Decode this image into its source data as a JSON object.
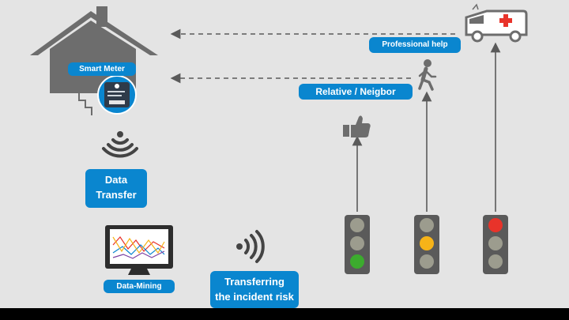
{
  "labels": {
    "smart_meter": "Smart Meter",
    "data_transfer_line1": "Data",
    "data_transfer_line2": "Transfer",
    "data_mining": "Data-Mining",
    "transfer_risk_line1": "Transferring",
    "transfer_risk_line2": "the incident risk",
    "professional_help": "Professional help",
    "relative_neighbor": "Relative / Neigbor"
  },
  "icons": [
    "house-icon",
    "smart-meter-device-icon",
    "wifi-signal-icon",
    "monitor-chart-icon",
    "thumbs-up-icon",
    "walking-person-icon",
    "ambulance-icon",
    "traffic-light-icon"
  ],
  "traffic_lights": [
    {
      "state": "green"
    },
    {
      "state": "yellow"
    },
    {
      "state": "red"
    }
  ],
  "colors": {
    "background": "#e4e4e4",
    "accent_blue": "#0a86cf",
    "icon_gray": "#6d6d6d",
    "light_red": "#e8332a",
    "light_yellow": "#f6b318",
    "light_green": "#3cab2e",
    "light_off": "#9c9c8e"
  }
}
